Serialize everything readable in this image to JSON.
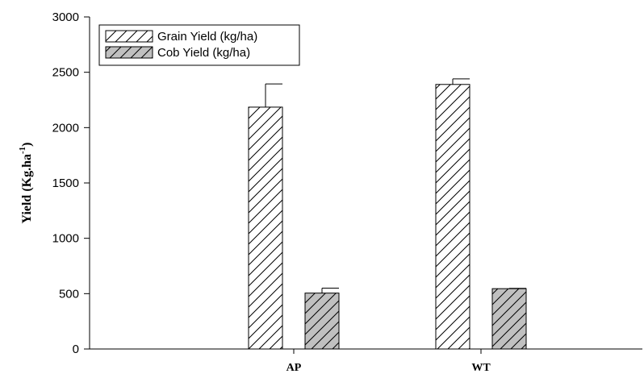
{
  "chart_data": {
    "type": "bar",
    "categories": [
      "AP",
      "WT"
    ],
    "series": [
      {
        "name": "Grain Yield (kg/ha)",
        "values": [
          2185,
          2390
        ],
        "errors": [
          210,
          50
        ],
        "fill": "#ffffff",
        "pattern": "hatch"
      },
      {
        "name": "Cob Yield (kg/ha)",
        "values": [
          505,
          545
        ],
        "errors": [
          45,
          3
        ],
        "fill": "#c0c0c0",
        "pattern": "hatch"
      }
    ],
    "title": "",
    "xlabel": "",
    "ylabel": {
      "main": "Yield (Kg.ha",
      "sup": "-1",
      "close": ")"
    },
    "ylim": [
      0,
      3000
    ],
    "yticks": [
      0,
      500,
      1000,
      1500,
      2000,
      2500,
      3000
    ],
    "grid": false,
    "legend_position": "top-left"
  }
}
